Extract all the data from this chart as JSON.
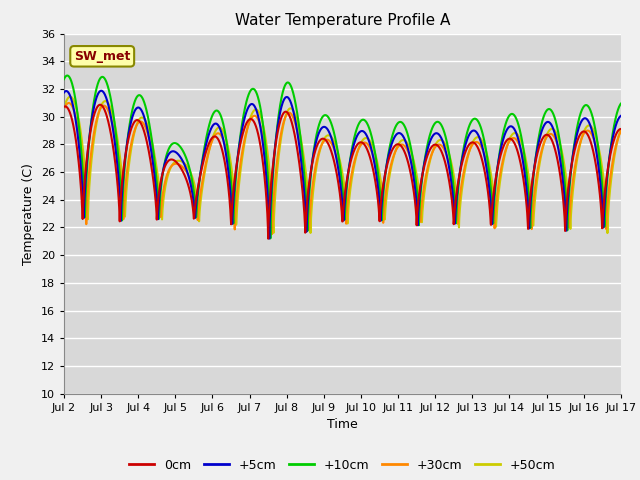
{
  "title": "Water Temperature Profile A",
  "xlabel": "Time",
  "ylabel": "Temperature (C)",
  "ylim": [
    10,
    36
  ],
  "yticks": [
    10,
    12,
    14,
    16,
    18,
    20,
    22,
    24,
    26,
    28,
    30,
    32,
    34,
    36
  ],
  "xlim_days": [
    2,
    17
  ],
  "xtick_labels": [
    "Jul 2",
    "Jul 3",
    "Jul 4",
    "Jul 5",
    "Jul 6",
    "Jul 7",
    "Jul 8",
    "Jul 9",
    "Jul 10",
    "Jul 11",
    "Jul 12",
    "Jul 13",
    "Jul 14",
    "Jul 15",
    "Jul 16",
    "Jul 17"
  ],
  "series_colors": [
    "#cc0000",
    "#0000cc",
    "#00cc00",
    "#ff8800",
    "#cccc00"
  ],
  "series_names": [
    "0cm",
    "+5cm",
    "+10cm",
    "+30cm",
    "+50cm"
  ],
  "series_lw": [
    1.5,
    1.5,
    1.5,
    1.5,
    1.5
  ],
  "sw_met_box_facecolor": "#ffffaa",
  "sw_met_text_color": "#880000",
  "sw_met_border_color": "#888800",
  "fig_facecolor": "#f0f0f0",
  "axes_facecolor": "#d8d8d8",
  "grid_color": "#ffffff",
  "title_fontsize": 11,
  "axis_label_fontsize": 9,
  "tick_fontsize": 8,
  "legend_fontsize": 9
}
